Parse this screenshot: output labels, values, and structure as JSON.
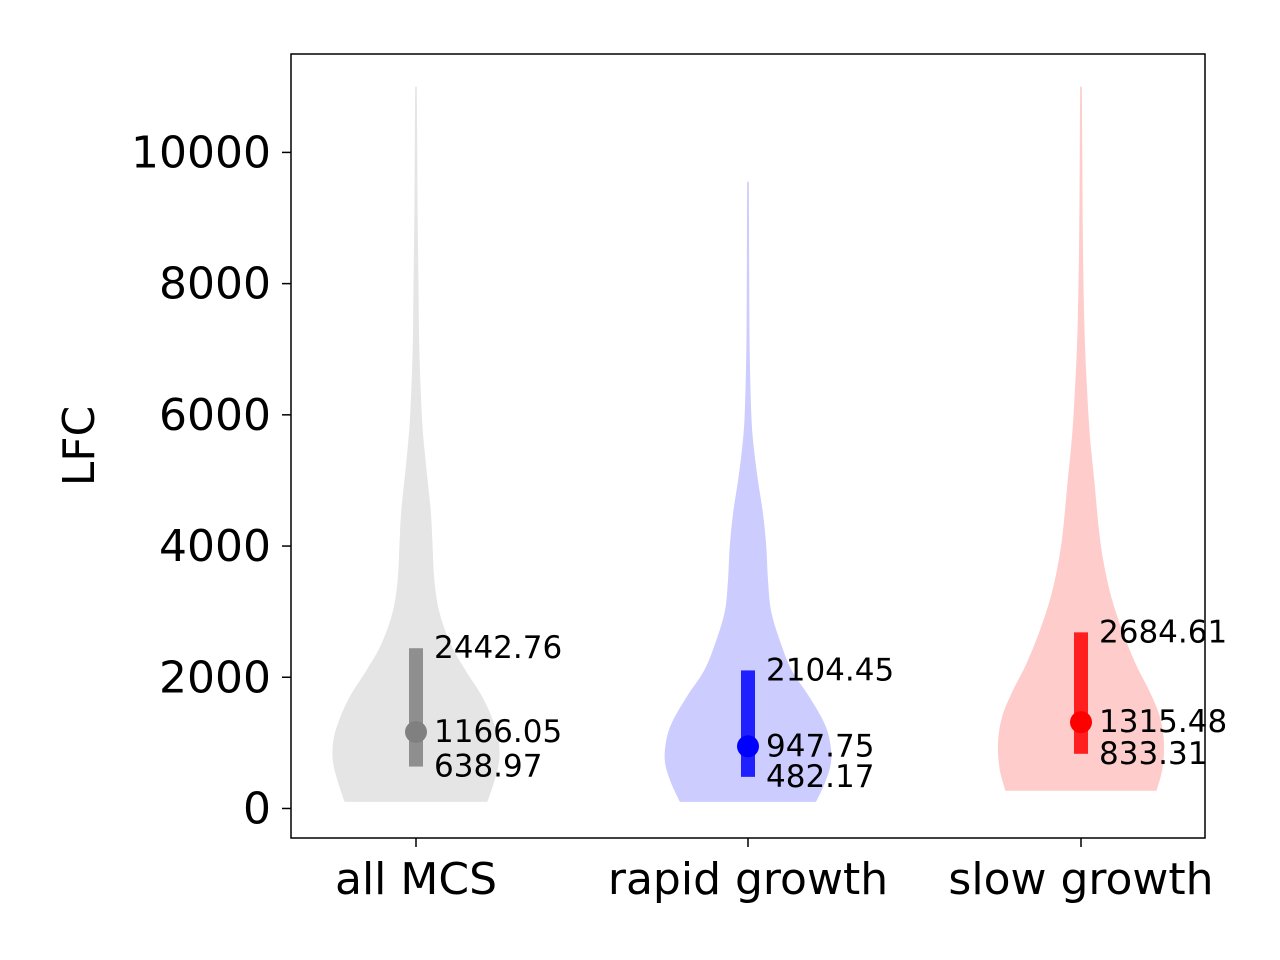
{
  "chart_data": {
    "type": "violin",
    "title": "",
    "xlabel": "",
    "ylabel": "LFC",
    "ylim": [
      -450,
      11500
    ],
    "yticks": [
      0,
      2000,
      4000,
      6000,
      8000,
      10000
    ],
    "ytick_labels": [
      "0",
      "2000",
      "4000",
      "6000",
      "8000",
      "10000"
    ],
    "grid": false,
    "categories": [
      "all MCS",
      "rapid growth",
      "slow growth"
    ],
    "series": [
      {
        "category": "all MCS",
        "color": "#808080",
        "fill_color": "#e5e5e5",
        "min": 100,
        "max": 11000,
        "q1": 638.97,
        "median": 1166.05,
        "q3": 2442.76,
        "q1_label": "638.97",
        "median_label": "1166.05",
        "q3_label": "2442.76",
        "density": [
          [
            100,
            0.86
          ],
          [
            400,
            0.94
          ],
          [
            700,
            1.0
          ],
          [
            1000,
            1.0
          ],
          [
            1300,
            0.94
          ],
          [
            1700,
            0.8
          ],
          [
            2100,
            0.6
          ],
          [
            2500,
            0.42
          ],
          [
            3000,
            0.28
          ],
          [
            3500,
            0.22
          ],
          [
            4000,
            0.2
          ],
          [
            4500,
            0.18
          ],
          [
            5000,
            0.14
          ],
          [
            5500,
            0.1
          ],
          [
            6000,
            0.07
          ],
          [
            7000,
            0.04
          ],
          [
            8000,
            0.03
          ],
          [
            9000,
            0.02
          ],
          [
            10000,
            0.015
          ],
          [
            11000,
            0.01
          ]
        ]
      },
      {
        "category": "rapid growth",
        "color": "#0000ff",
        "fill_color": "#ccccff",
        "min": 100,
        "max": 9550,
        "q1": 482.17,
        "median": 947.75,
        "q3": 2104.45,
        "q1_label": "482.17",
        "median_label": "947.75",
        "q3_label": "2104.45",
        "density": [
          [
            100,
            0.82
          ],
          [
            400,
            0.93
          ],
          [
            700,
            1.0
          ],
          [
            1000,
            0.99
          ],
          [
            1300,
            0.92
          ],
          [
            1700,
            0.74
          ],
          [
            2100,
            0.53
          ],
          [
            2500,
            0.4
          ],
          [
            3000,
            0.28
          ],
          [
            3500,
            0.24
          ],
          [
            4000,
            0.22
          ],
          [
            4500,
            0.18
          ],
          [
            5000,
            0.12
          ],
          [
            5500,
            0.07
          ],
          [
            6000,
            0.04
          ],
          [
            7000,
            0.02
          ],
          [
            8000,
            0.015
          ],
          [
            9000,
            0.012
          ],
          [
            9550,
            0.01
          ]
        ]
      },
      {
        "category": "slow growth",
        "color": "#ff0000",
        "fill_color": "#ffcccc",
        "min": 270,
        "max": 11000,
        "q1": 833.31,
        "median": 1315.48,
        "q3": 2684.61,
        "q1_label": "833.31",
        "median_label": "1315.48",
        "q3_label": "2684.61",
        "density": [
          [
            270,
            0.91
          ],
          [
            600,
            0.98
          ],
          [
            1000,
            1.0
          ],
          [
            1400,
            0.95
          ],
          [
            1800,
            0.82
          ],
          [
            2200,
            0.66
          ],
          [
            2700,
            0.5
          ],
          [
            3200,
            0.37
          ],
          [
            3700,
            0.28
          ],
          [
            4200,
            0.22
          ],
          [
            5000,
            0.16
          ],
          [
            5500,
            0.12
          ],
          [
            6000,
            0.09
          ],
          [
            7000,
            0.05
          ],
          [
            8000,
            0.03
          ],
          [
            9000,
            0.02
          ],
          [
            10000,
            0.015
          ],
          [
            11000,
            0.01
          ]
        ]
      }
    ]
  }
}
